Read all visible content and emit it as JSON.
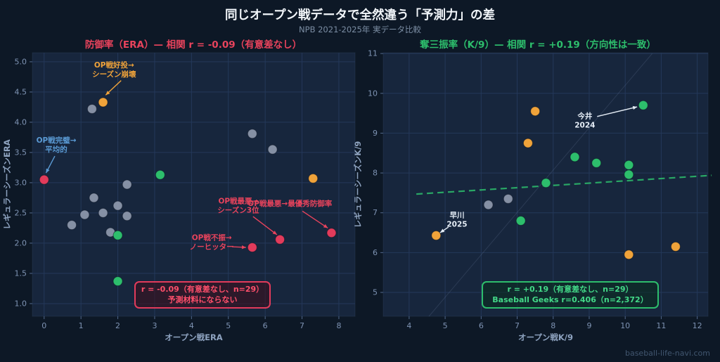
{
  "header": {
    "title": "同じオープン戦データで全然違う「予測力」の差",
    "subtitle": "NPB 2021-2025年 実データ比較"
  },
  "footer": {
    "watermark": "baseball-life-navi.com"
  },
  "colors": {
    "background": "#0d1826",
    "panel": "#17263d",
    "grid": "#24385a",
    "spine": "rgba(140,170,220,0.10)",
    "tick_text": "#7e93b3",
    "red": "#e23b5b",
    "green": "#2dbe6c",
    "orange": "#f0a33a",
    "gray": "#929cb0",
    "blue": "#5b9bd5",
    "white": "#e4ecf5"
  },
  "chart_data": [
    {
      "type": "scatter",
      "host": "chart-era",
      "title": "防御率（ERA）— 相関 r = -0.09（有意差なし）",
      "title_color": "#e8435c",
      "xlabel": "オープン戦ERA",
      "ylabel": "レギュラーシーズンERA",
      "xlim": [
        -0.32,
        8.44
      ],
      "ylim": [
        0.79,
        5.15
      ],
      "xticks": [
        0,
        1,
        2,
        3,
        4,
        5,
        6,
        7,
        8
      ],
      "xtick_labels": [
        "0",
        "1",
        "2",
        "3",
        "4",
        "5",
        "6",
        "7",
        "8"
      ],
      "yticks": [
        1.0,
        1.5,
        2.0,
        2.5,
        3.0,
        3.5,
        4.0,
        4.5,
        5.0
      ],
      "ytick_labels": [
        "1.0",
        "1.5",
        "2.0",
        "2.5",
        "3.0",
        "3.5",
        "4.0",
        "4.5",
        "5.0"
      ],
      "grid": true,
      "legend": "none",
      "series": [
        {
          "name": "other-pitchers",
          "color": "#929cb0",
          "opacity": 0.9,
          "points": [
            [
              1.3,
              4.22
            ],
            [
              5.65,
              3.81
            ],
            [
              6.2,
              3.55
            ],
            [
              2.25,
              2.97
            ],
            [
              1.35,
              2.75
            ],
            [
              2.0,
              2.62
            ],
            [
              1.6,
              2.5
            ],
            [
              1.1,
              2.47
            ],
            [
              2.25,
              2.45
            ],
            [
              0.75,
              2.3
            ],
            [
              1.8,
              2.18
            ]
          ]
        },
        {
          "name": "highlight-green",
          "color": "#2dbe6c",
          "opacity": 1,
          "points": [
            [
              3.15,
              3.13
            ],
            [
              2.0,
              2.13
            ],
            [
              2.0,
              1.37
            ]
          ]
        },
        {
          "name": "highlight-orange",
          "color": "#f0a33a",
          "opacity": 1,
          "points": [
            [
              1.6,
              4.33
            ],
            [
              7.3,
              3.07
            ]
          ]
        },
        {
          "name": "highlight-red",
          "color": "#e23b5b",
          "opacity": 1,
          "points": [
            [
              0.0,
              3.05
            ],
            [
              6.4,
              2.06
            ],
            [
              7.8,
              2.17
            ],
            [
              5.65,
              1.93
            ]
          ]
        }
      ],
      "annotations": [
        {
          "lines": [
            "OP戦好投→",
            "シーズン崩壊"
          ],
          "color": "#f0a33a",
          "text_xy": [
            1.9,
            4.95
          ],
          "arrow_from": [
            2.09,
            4.69
          ],
          "arrow_to": [
            1.67,
            4.45
          ]
        },
        {
          "lines": [
            "OP戦完璧→",
            "平均的"
          ],
          "color": "#5b9bd5",
          "text_xy": [
            0.33,
            3.71
          ],
          "arrow_from": [
            0.29,
            3.44
          ],
          "arrow_to": [
            0.05,
            3.16
          ]
        },
        {
          "lines": [
            "OP戦最悪→",
            "シーズン3位"
          ],
          "color": "#e8435c",
          "text_xy": [
            5.27,
            2.7
          ],
          "arrow_from": [
            5.67,
            2.44
          ],
          "arrow_to": [
            6.32,
            2.14
          ]
        },
        {
          "lines": [
            "OP戦最悪→最優秀防御率"
          ],
          "color": "#e8435c",
          "text_xy": [
            6.67,
            2.66
          ],
          "arrow_from": [
            7.01,
            2.53
          ],
          "arrow_to": [
            7.7,
            2.25
          ]
        },
        {
          "lines": [
            "OP戦不振→",
            "ノーヒッター"
          ],
          "color": "#e8435c",
          "text_xy": [
            4.55,
            2.1
          ],
          "arrow_from": [
            5.1,
            1.94
          ],
          "arrow_to": [
            5.48,
            1.93
          ]
        }
      ],
      "stat_box": {
        "lines": [
          "r = -0.09（有意差なし、n=29）",
          "予測材料にならない"
        ]
      }
    },
    {
      "type": "scatter",
      "host": "chart-k9",
      "title": "奪三振率（K/9）— 相関 r = +0.19（方向性は一致）",
      "title_color": "#2dbe6c",
      "xlabel": "オープン戦K/9",
      "ylabel": "レギュラーシーズンK/9",
      "xlim": [
        3.28,
        12.3
      ],
      "ylim": [
        4.4,
        11.02
      ],
      "xticks": [
        4,
        5,
        6,
        7,
        8,
        9,
        10,
        11,
        12
      ],
      "xtick_labels": [
        "4",
        "5",
        "6",
        "7",
        "8",
        "9",
        "10",
        "11",
        "12"
      ],
      "yticks": [
        5,
        6,
        7,
        8,
        9,
        10,
        11
      ],
      "ytick_labels": [
        "5",
        "6",
        "7",
        "8",
        "9",
        "10",
        "11"
      ],
      "grid": true,
      "legend": "none",
      "identity_line": {
        "from": [
          4.55,
          4.4
        ],
        "to": [
          10.75,
          11.0
        ]
      },
      "trend_line": {
        "from": [
          4.2,
          7.47
        ],
        "to": [
          12.4,
          7.94
        ],
        "color": "#2dbe6c",
        "style": "dashed"
      },
      "series": [
        {
          "name": "other-pitchers",
          "color": "#929cb0",
          "opacity": 0.9,
          "points": [
            [
              6.2,
              7.2
            ],
            [
              6.75,
              7.35
            ]
          ]
        },
        {
          "name": "highlight-green",
          "color": "#2dbe6c",
          "opacity": 1,
          "points": [
            [
              10.5,
              9.7
            ],
            [
              8.6,
              8.4
            ],
            [
              9.2,
              8.25
            ],
            [
              10.1,
              8.2
            ],
            [
              10.1,
              7.96
            ],
            [
              7.8,
              7.75
            ],
            [
              7.1,
              6.8
            ]
          ]
        },
        {
          "name": "highlight-orange",
          "color": "#f0a33a",
          "opacity": 1,
          "points": [
            [
              7.5,
              9.55
            ],
            [
              7.3,
              8.75
            ],
            [
              4.75,
              6.43
            ],
            [
              10.1,
              5.95
            ],
            [
              11.4,
              6.15
            ]
          ]
        }
      ],
      "annotations": [
        {
          "lines": [
            "今井",
            "2024"
          ],
          "color": "#e4ecf5",
          "text_xy": [
            8.88,
            9.44
          ],
          "arrow_from": [
            9.22,
            9.42
          ],
          "arrow_to": [
            10.33,
            9.66
          ]
        },
        {
          "lines": [
            "早川",
            "2025"
          ],
          "color": "#e4ecf5",
          "text_xy": [
            5.33,
            6.95
          ],
          "arrow_from": [
            5.09,
            6.64
          ],
          "arrow_to": [
            4.86,
            6.5
          ]
        }
      ],
      "stat_box": {
        "lines": [
          "r = +0.19（有意差なし、n=29）",
          "Baseball Geeks r=0.406（n=2,372）"
        ]
      }
    }
  ]
}
